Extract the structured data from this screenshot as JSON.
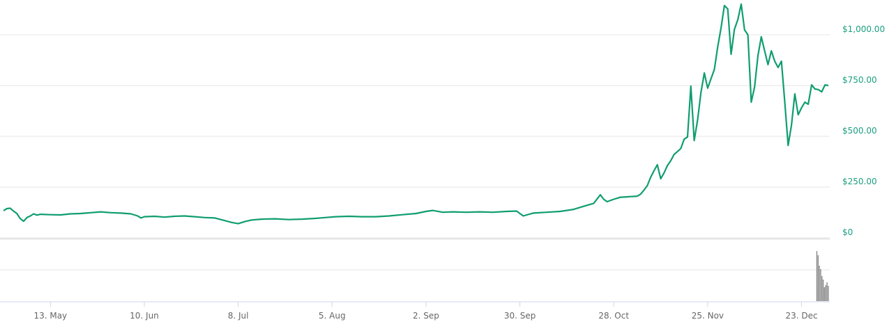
{
  "chart_data": {
    "type": "line",
    "title": "",
    "xlabel": "",
    "ylabel": "",
    "line_color": "#0f9d70",
    "y_label_color": "#1a9e7f",
    "volume_color": "#8a8a8a",
    "grid": true,
    "ylim": [
      0,
      1165
    ],
    "yticks": [
      {
        "value": 0,
        "label": "$0"
      },
      {
        "value": 250,
        "label": "$250.00"
      },
      {
        "value": 500,
        "label": "$500.00"
      },
      {
        "value": 750,
        "label": "$750.00"
      },
      {
        "value": 1000,
        "label": "$1,000.00"
      }
    ],
    "xrange": [
      "29 Apr",
      "31 Dec"
    ],
    "xticks": [
      "13 May",
      "10 Jun",
      "8 Jul",
      "5 Aug",
      "2 Sep",
      "30 Sep",
      "28 Oct",
      "25 Nov",
      "23 Dec"
    ],
    "xtick_labels": [
      "13. May",
      "10. Jun",
      "8. Jul",
      "5. Aug",
      "2. Sep",
      "30. Sep",
      "28. Oct",
      "25. Nov",
      "23. Dec"
    ],
    "series": [
      {
        "points": [
          [
            "29 Apr",
            134
          ],
          [
            "30 Apr",
            144
          ],
          [
            "1 May",
            146
          ],
          [
            "2 May",
            132
          ],
          [
            "3 May",
            120
          ],
          [
            "4 May",
            95
          ],
          [
            "5 May",
            82
          ],
          [
            "6 May",
            100
          ],
          [
            "7 May",
            108
          ],
          [
            "8 May",
            118
          ],
          [
            "9 May",
            112
          ],
          [
            "10 May",
            116
          ],
          [
            "13 May",
            114
          ],
          [
            "16 May",
            113
          ],
          [
            "19 May",
            118
          ],
          [
            "22 May",
            120
          ],
          [
            "25 May",
            124
          ],
          [
            "28 May",
            128
          ],
          [
            "31 May",
            124
          ],
          [
            "3 Jun",
            122
          ],
          [
            "6 Jun",
            118
          ],
          [
            "8 Jun",
            108
          ],
          [
            "9 Jun",
            98
          ],
          [
            "10 Jun",
            104
          ],
          [
            "13 Jun",
            106
          ],
          [
            "16 Jun",
            102
          ],
          [
            "19 Jun",
            106
          ],
          [
            "22 Jun",
            108
          ],
          [
            "25 Jun",
            104
          ],
          [
            "28 Jun",
            100
          ],
          [
            "1 Jul",
            98
          ],
          [
            "4 Jul",
            85
          ],
          [
            "6 Jul",
            76
          ],
          [
            "8 Jul",
            70
          ],
          [
            "10 Jul",
            80
          ],
          [
            "12 Jul",
            88
          ],
          [
            "15 Jul",
            92
          ],
          [
            "19 Jul",
            94
          ],
          [
            "23 Jul",
            90
          ],
          [
            "27 Jul",
            92
          ],
          [
            "31 Jul",
            96
          ],
          [
            "3 Aug",
            100
          ],
          [
            "6 Aug",
            104
          ],
          [
            "10 Aug",
            106
          ],
          [
            "14 Aug",
            104
          ],
          [
            "18 Aug",
            104
          ],
          [
            "22 Aug",
            108
          ],
          [
            "26 Aug",
            114
          ],
          [
            "30 Aug",
            120
          ],
          [
            "2 Sep",
            130
          ],
          [
            "4 Sep",
            135
          ],
          [
            "7 Sep",
            126
          ],
          [
            "10 Sep",
            128
          ],
          [
            "14 Sep",
            126
          ],
          [
            "18 Sep",
            128
          ],
          [
            "22 Sep",
            126
          ],
          [
            "26 Sep",
            130
          ],
          [
            "29 Sep",
            132
          ],
          [
            "30 Sep",
            120
          ],
          [
            "1 Oct",
            108
          ],
          [
            "4 Oct",
            122
          ],
          [
            "8 Oct",
            126
          ],
          [
            "12 Oct",
            130
          ],
          [
            "16 Oct",
            140
          ],
          [
            "19 Oct",
            155
          ],
          [
            "22 Oct",
            170
          ],
          [
            "24 Oct",
            212
          ],
          [
            "25 Oct",
            190
          ],
          [
            "26 Oct",
            178
          ],
          [
            "28 Oct",
            190
          ],
          [
            "30 Oct",
            200
          ],
          [
            "1 Nov",
            202
          ],
          [
            "2 Nov",
            203
          ],
          [
            "3 Nov",
            204
          ],
          [
            "4 Nov",
            205
          ],
          [
            "5 Nov",
            215
          ],
          [
            "6 Nov",
            235
          ],
          [
            "7 Nov",
            257
          ],
          [
            "8 Nov",
            298
          ],
          [
            "9 Nov",
            330
          ],
          [
            "10 Nov",
            360
          ],
          [
            "11 Nov",
            291
          ],
          [
            "12 Nov",
            320
          ],
          [
            "13 Nov",
            356
          ],
          [
            "14 Nov",
            380
          ],
          [
            "15 Nov",
            411
          ],
          [
            "16 Nov",
            425
          ],
          [
            "17 Nov",
            440
          ],
          [
            "18 Nov",
            486
          ],
          [
            "19 Nov",
            497
          ],
          [
            "20 Nov",
            747
          ],
          [
            "21 Nov",
            479
          ],
          [
            "22 Nov",
            582
          ],
          [
            "23 Nov",
            716
          ],
          [
            "24 Nov",
            812
          ],
          [
            "25 Nov",
            737
          ],
          [
            "26 Nov",
            784
          ],
          [
            "27 Nov",
            829
          ],
          [
            "28 Nov",
            940
          ],
          [
            "29 Nov",
            1034
          ],
          [
            "30 Nov",
            1144
          ],
          [
            "1 Dec",
            1127
          ],
          [
            "2 Dec",
            904
          ],
          [
            "3 Dec",
            1027
          ],
          [
            "4 Dec",
            1075
          ],
          [
            "5 Dec",
            1151
          ],
          [
            "6 Dec",
            1024
          ],
          [
            "7 Dec",
            1000
          ],
          [
            "8 Dec",
            668
          ],
          [
            "9 Dec",
            743
          ],
          [
            "10 Dec",
            897
          ],
          [
            "11 Dec",
            990
          ],
          [
            "12 Dec",
            921
          ],
          [
            "13 Dec",
            853
          ],
          [
            "14 Dec",
            921
          ],
          [
            "15 Dec",
            870
          ],
          [
            "16 Dec",
            839
          ],
          [
            "17 Dec",
            870
          ],
          [
            "18 Dec",
            668
          ],
          [
            "19 Dec",
            455
          ],
          [
            "20 Dec",
            555
          ],
          [
            "21 Dec",
            709
          ],
          [
            "22 Dec",
            606
          ],
          [
            "23 Dec",
            640
          ],
          [
            "24 Dec",
            668
          ],
          [
            "25 Dec",
            658
          ],
          [
            "26 Dec",
            753
          ],
          [
            "27 Dec",
            733
          ],
          [
            "28 Dec",
            730
          ],
          [
            "29 Dec",
            719
          ],
          [
            "30 Dec",
            753
          ],
          [
            "31 Dec",
            750
          ]
        ]
      }
    ],
    "volume": {
      "x_start": "27 Dec",
      "x_end": "31 Dec",
      "values_relative": [
        72,
        66,
        51,
        46,
        36,
        31,
        20,
        23,
        27,
        22
      ]
    }
  }
}
